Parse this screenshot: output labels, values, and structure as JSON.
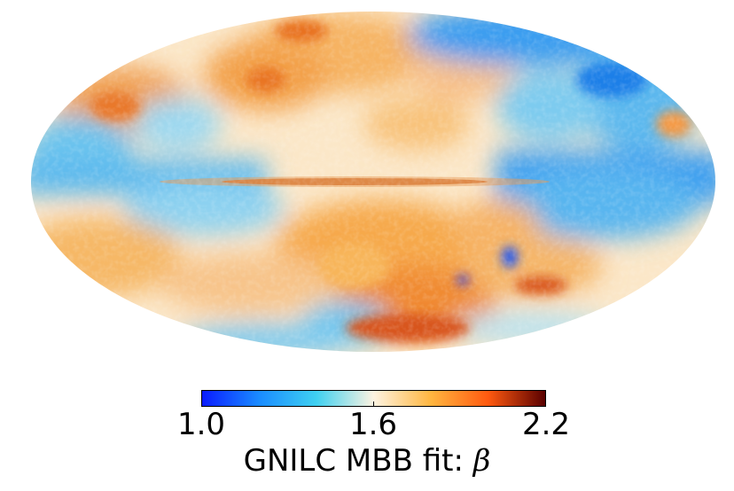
{
  "map": {
    "projection": "Mollweide",
    "colormap": [
      "#0a1cff",
      "#1a8cff",
      "#3fd0f0",
      "#fdf3e1",
      "#ffb640",
      "#ff5a10",
      "#5a0000"
    ]
  },
  "colorbar": {
    "min": 1.0,
    "max": 2.2,
    "ticks": [
      {
        "value": 1.0,
        "label": "1.0"
      },
      {
        "value": 1.6,
        "label": "1.6"
      },
      {
        "value": 2.2,
        "label": "2.2"
      }
    ],
    "title_prefix": "GNILC MBB fit: ",
    "title_symbol": "β"
  }
}
